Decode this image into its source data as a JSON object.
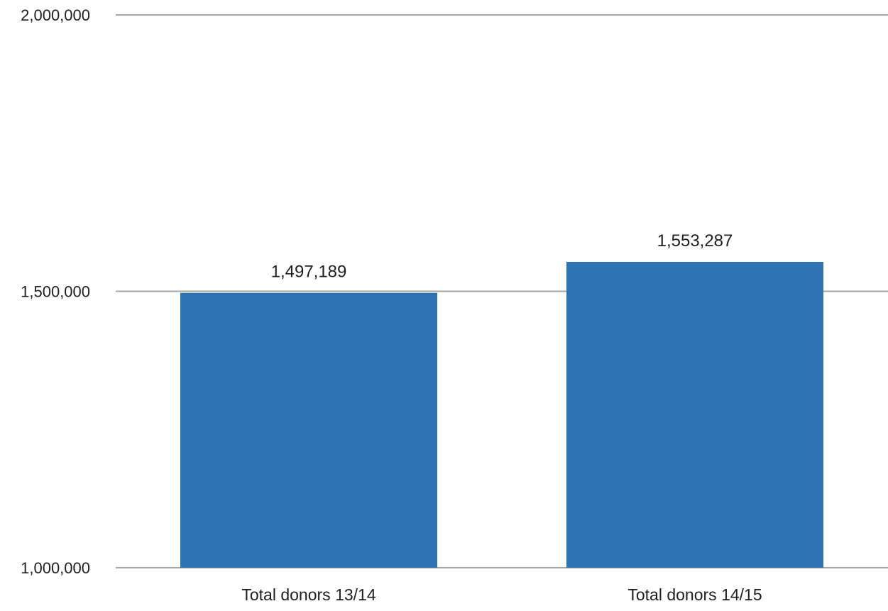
{
  "chart_data": {
    "type": "bar",
    "categories": [
      "Total donors 13/14",
      "Total donors 14/15"
    ],
    "values": [
      1497189,
      1553287
    ],
    "data_labels": [
      "1,497,189",
      "1,553,287"
    ],
    "ylim": [
      1000000,
      2000000
    ],
    "yticks": [
      1000000,
      1500000,
      2000000
    ],
    "ytick_labels": [
      "1,000,000",
      "1,500,000",
      "2,000,000"
    ],
    "title": "",
    "xlabel": "",
    "ylabel": "",
    "grid": true,
    "legend": "none",
    "colors": {
      "bar": "#2e74b5",
      "gridline": "#a6a6a6",
      "text": "#1f1f1f"
    }
  }
}
